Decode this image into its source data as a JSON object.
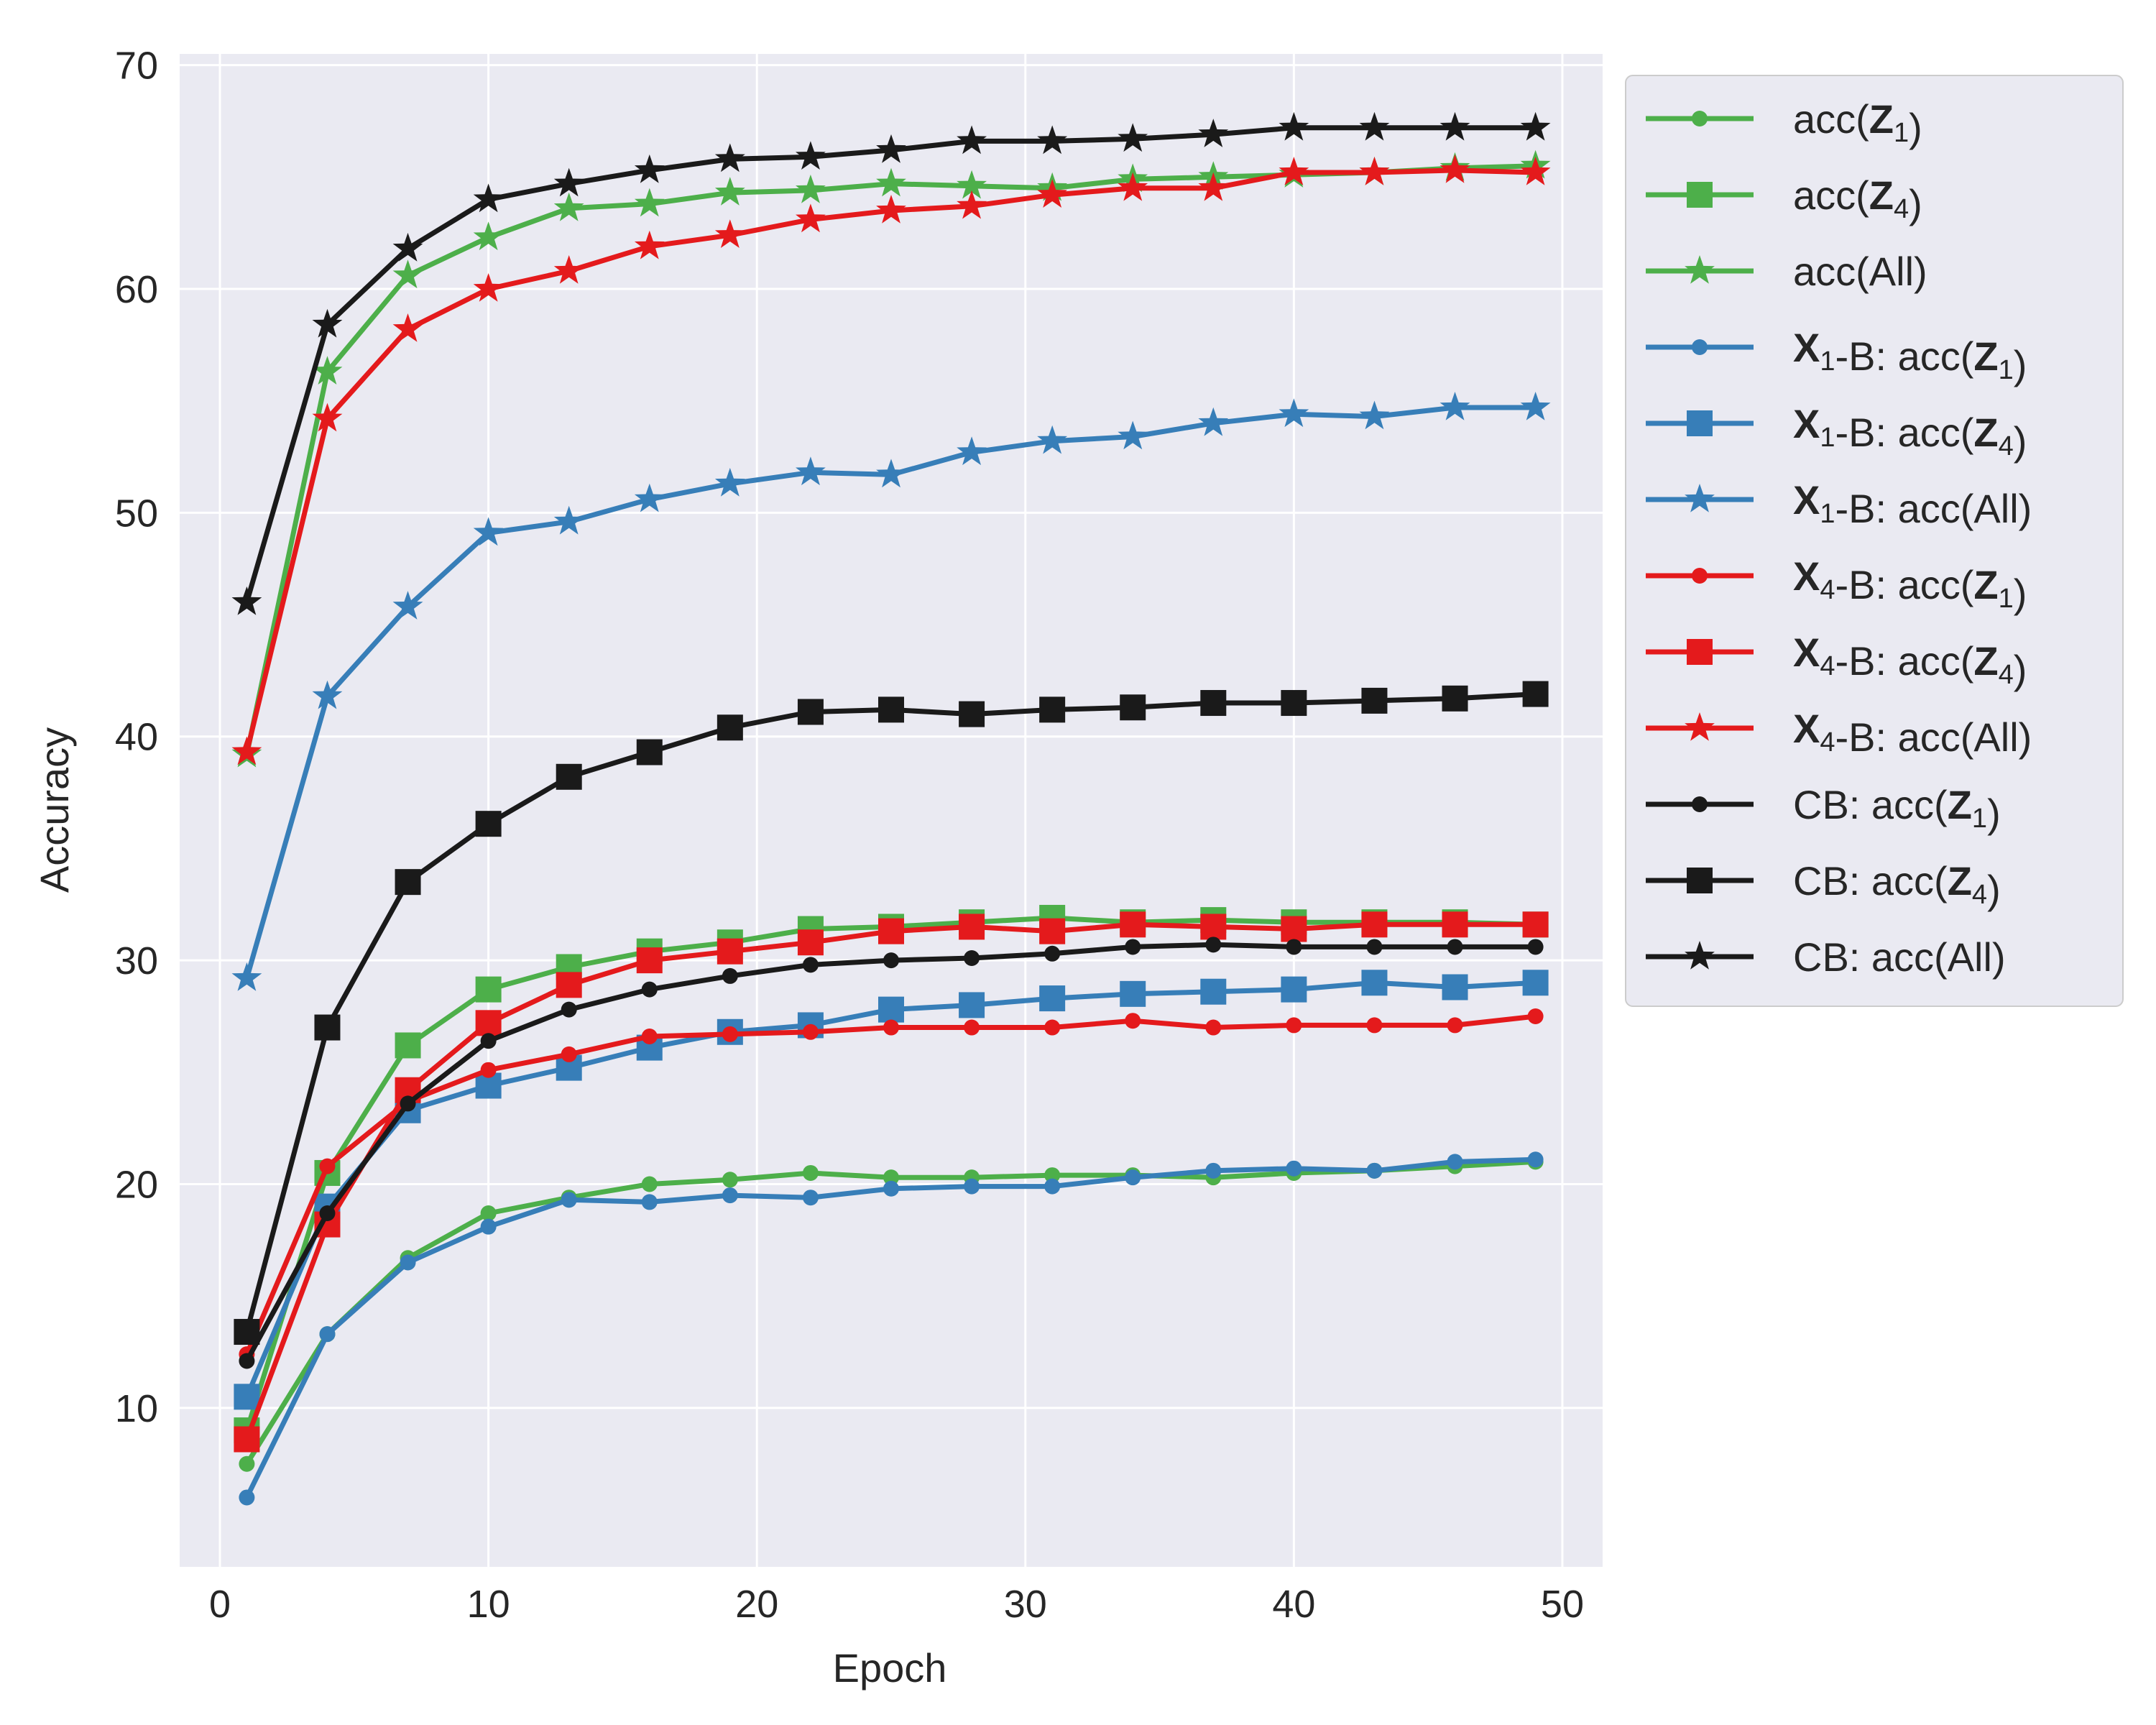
{
  "chart_data": {
    "type": "line",
    "title": "",
    "xlabel": "Epoch",
    "ylabel": "Accuracy",
    "xlim": [
      -1.5,
      51.5
    ],
    "ylim": [
      2.9,
      70.5
    ],
    "xticks": [
      0,
      10,
      20,
      30,
      40,
      50
    ],
    "yticks": [
      10,
      20,
      30,
      40,
      50,
      60,
      70
    ],
    "grid": true,
    "legend_position": "outside-right",
    "x": [
      1,
      4,
      7,
      10,
      13,
      16,
      19,
      22,
      25,
      28,
      31,
      34,
      37,
      40,
      43,
      46,
      49
    ],
    "series": [
      {
        "name": "acc(Z1)",
        "label_parts": [
          "acc(",
          "Z",
          "1",
          ")"
        ],
        "color": "#4daf4a",
        "marker": "circle",
        "values": [
          7.5,
          13.3,
          16.7,
          18.7,
          19.4,
          20.0,
          20.2,
          20.5,
          20.3,
          20.3,
          20.4,
          20.4,
          20.3,
          20.5,
          20.6,
          20.8,
          21.0
        ]
      },
      {
        "name": "acc(Z4)",
        "label_parts": [
          "acc(",
          "Z",
          "4",
          ")"
        ],
        "color": "#4daf4a",
        "marker": "square",
        "values": [
          9.0,
          20.5,
          26.2,
          28.7,
          29.7,
          30.4,
          30.8,
          31.4,
          31.5,
          31.7,
          31.9,
          31.7,
          31.8,
          31.7,
          31.7,
          31.7,
          31.6
        ]
      },
      {
        "name": "acc(All)",
        "label_parts": [
          "acc(All)",
          "",
          "",
          ""
        ],
        "color": "#4daf4a",
        "marker": "star",
        "values": [
          39.2,
          56.3,
          60.6,
          62.3,
          63.6,
          63.8,
          64.3,
          64.4,
          64.7,
          64.6,
          64.5,
          64.9,
          65.0,
          65.1,
          65.2,
          65.4,
          65.5
        ]
      },
      {
        "name": "X1-B: acc(Z1)",
        "label_parts": [
          "X",
          "1",
          "-B: acc(",
          "Z",
          "1",
          ")"
        ],
        "color": "#377eb8",
        "marker": "circle",
        "values": [
          6.0,
          13.3,
          16.5,
          18.1,
          19.3,
          19.2,
          19.5,
          19.4,
          19.8,
          19.9,
          19.9,
          20.3,
          20.6,
          20.7,
          20.6,
          21.0,
          21.1
        ]
      },
      {
        "name": "X1-B: acc(Z4)",
        "label_parts": [
          "X",
          "1",
          "-B: acc(",
          "Z",
          "4",
          ")"
        ],
        "color": "#377eb8",
        "marker": "square",
        "values": [
          10.5,
          19.0,
          23.3,
          24.4,
          25.2,
          26.1,
          26.8,
          27.1,
          27.8,
          28.0,
          28.3,
          28.5,
          28.6,
          28.7,
          29.0,
          28.8,
          29.0
        ]
      },
      {
        "name": "X1-B: acc(All)",
        "label_parts": [
          "X",
          "1",
          "-B: acc(All)",
          "",
          "",
          ""
        ],
        "color": "#377eb8",
        "marker": "star",
        "values": [
          29.2,
          41.8,
          45.8,
          49.1,
          49.6,
          50.6,
          51.3,
          51.8,
          51.7,
          52.7,
          53.2,
          53.4,
          54.0,
          54.4,
          54.3,
          54.7,
          54.7
        ]
      },
      {
        "name": "X4-B: acc(Z1)",
        "label_parts": [
          "X",
          "4",
          "-B: acc(",
          "Z",
          "1",
          ")"
        ],
        "color": "#e41a1c",
        "marker": "circle",
        "values": [
          12.4,
          20.8,
          23.7,
          25.1,
          25.8,
          26.6,
          26.7,
          26.8,
          27.0,
          27.0,
          27.0,
          27.3,
          27.0,
          27.1,
          27.1,
          27.1,
          27.5
        ]
      },
      {
        "name": "X4-B: acc(Z4)",
        "label_parts": [
          "X",
          "4",
          "-B: acc(",
          "Z",
          "4",
          ")"
        ],
        "color": "#e41a1c",
        "marker": "square",
        "values": [
          8.6,
          18.2,
          24.2,
          27.2,
          28.9,
          30.0,
          30.4,
          30.8,
          31.3,
          31.5,
          31.3,
          31.6,
          31.5,
          31.4,
          31.6,
          31.6,
          31.6
        ]
      },
      {
        "name": "X4-B: acc(All)",
        "label_parts": [
          "X",
          "4",
          "-B: acc(All)",
          "",
          "",
          ""
        ],
        "color": "#e41a1c",
        "marker": "star",
        "values": [
          39.3,
          54.2,
          58.2,
          60.0,
          60.8,
          61.9,
          62.4,
          63.1,
          63.5,
          63.7,
          64.2,
          64.5,
          64.5,
          65.2,
          65.2,
          65.3,
          65.2
        ]
      },
      {
        "name": "CB: acc(Z1)",
        "label_parts": [
          "CB: acc(",
          "Z",
          "1",
          ")"
        ],
        "color": "#1a1a1a",
        "marker": "circle",
        "values": [
          12.1,
          18.7,
          23.6,
          26.4,
          27.8,
          28.7,
          29.3,
          29.8,
          30.0,
          30.1,
          30.3,
          30.6,
          30.7,
          30.6,
          30.6,
          30.6,
          30.6
        ]
      },
      {
        "name": "CB: acc(Z4)",
        "label_parts": [
          "CB: acc(",
          "Z",
          "4",
          ")"
        ],
        "color": "#1a1a1a",
        "marker": "square",
        "values": [
          13.4,
          27.0,
          33.5,
          36.1,
          38.2,
          39.3,
          40.4,
          41.1,
          41.2,
          41.0,
          41.2,
          41.3,
          41.5,
          41.5,
          41.6,
          41.7,
          41.9
        ]
      },
      {
        "name": "CB: acc(All)",
        "label_parts": [
          "CB: acc(All)",
          "",
          "",
          ""
        ],
        "color": "#1a1a1a",
        "marker": "star",
        "values": [
          46.0,
          58.4,
          61.8,
          64.0,
          64.7,
          65.3,
          65.8,
          65.9,
          66.2,
          66.6,
          66.6,
          66.7,
          66.9,
          67.2,
          67.2,
          67.2,
          67.2
        ]
      }
    ]
  }
}
